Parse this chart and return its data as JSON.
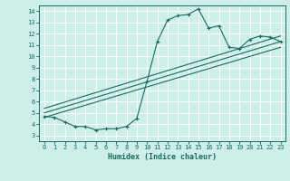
{
  "xlabel": "Humidex (Indice chaleur)",
  "bg_color": "#cdeee9",
  "line_color": "#1a6b5e",
  "grid_color": "#ffffff",
  "xlim": [
    -0.5,
    23.5
  ],
  "ylim": [
    2.5,
    14.5
  ],
  "xticks": [
    0,
    1,
    2,
    3,
    4,
    5,
    6,
    7,
    8,
    9,
    10,
    11,
    12,
    13,
    14,
    15,
    16,
    17,
    18,
    19,
    20,
    21,
    22,
    23
  ],
  "yticks": [
    3,
    4,
    5,
    6,
    7,
    8,
    9,
    10,
    11,
    12,
    13,
    14
  ],
  "curve1_x": [
    0,
    1,
    2,
    3,
    4,
    5,
    6,
    7,
    8,
    9,
    10,
    11,
    12,
    13,
    14,
    15,
    16,
    17,
    18,
    19,
    20,
    21,
    22,
    23
  ],
  "curve1_y": [
    4.7,
    4.6,
    4.2,
    3.8,
    3.8,
    3.5,
    3.6,
    3.6,
    3.8,
    4.5,
    7.8,
    11.3,
    13.2,
    13.6,
    13.7,
    14.2,
    12.5,
    12.7,
    10.8,
    10.7,
    11.5,
    11.8,
    11.7,
    11.3
  ],
  "line1_x": [
    0,
    23
  ],
  "line1_y": [
    4.6,
    10.8
  ],
  "line2_x": [
    0,
    23
  ],
  "line2_y": [
    5.0,
    11.3
  ],
  "line3_x": [
    0,
    23
  ],
  "line3_y": [
    5.4,
    11.8
  ]
}
